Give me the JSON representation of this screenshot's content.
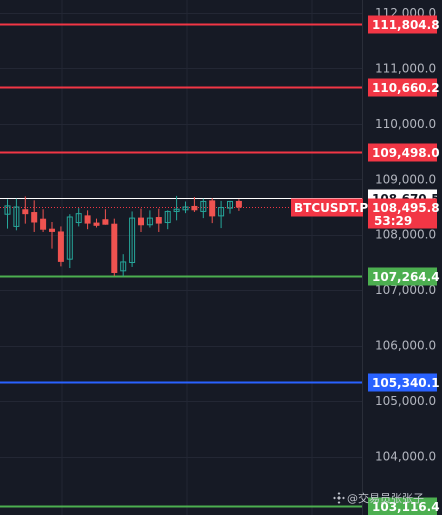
{
  "price_axis": {
    "min": 102950,
    "max": 112230,
    "tick_labels": [
      "112,000.0",
      "111,000.0",
      "110,000.0",
      "109,000.0",
      "108,000.0",
      "107,000.0",
      "106,000.0",
      "105,000.0",
      "104,000.0"
    ],
    "tick_values": [
      112000,
      111000,
      110000,
      109000,
      108000,
      107000,
      106000,
      105000,
      104000
    ]
  },
  "horizontal_lines": [
    {
      "value": 111804.8,
      "label": "111,804.8",
      "color": "#f23645"
    },
    {
      "value": 110660.2,
      "label": "110,660.2",
      "color": "#f23645"
    },
    {
      "value": 109498.0,
      "label": "109,498.0",
      "color": "#f23645"
    },
    {
      "value": 107264.4,
      "label": "107,264.4",
      "color": "#4caf50"
    },
    {
      "value": 105340.1,
      "label": "105,340.1",
      "color": "#2962ff"
    },
    {
      "value": 103116.4,
      "label": "103,116.4",
      "color": "#4caf50"
    }
  ],
  "high_line": {
    "value": 108670.5,
    "label": "108,670.5"
  },
  "current_price": {
    "symbol": "BTCUSDT.P",
    "value": 108495.8,
    "label": "108,495.8",
    "countdown": "53:29",
    "color": "#f23645"
  },
  "candles": [
    {
      "o": 108370,
      "h": 108640,
      "l": 108110,
      "c": 108520
    },
    {
      "o": 108150,
      "h": 108650,
      "l": 108080,
      "c": 108500
    },
    {
      "o": 108450,
      "h": 108690,
      "l": 108200,
      "c": 108380
    },
    {
      "o": 108400,
      "h": 108620,
      "l": 108050,
      "c": 108230
    },
    {
      "o": 108280,
      "h": 108460,
      "l": 108050,
      "c": 108100
    },
    {
      "o": 108100,
      "h": 108230,
      "l": 107750,
      "c": 108060
    },
    {
      "o": 108050,
      "h": 108150,
      "l": 107430,
      "c": 107520
    },
    {
      "o": 107560,
      "h": 108370,
      "l": 107400,
      "c": 108320
    },
    {
      "o": 108220,
      "h": 108480,
      "l": 108150,
      "c": 108380
    },
    {
      "o": 108340,
      "h": 108440,
      "l": 108100,
      "c": 108210
    },
    {
      "o": 108210,
      "h": 108290,
      "l": 108130,
      "c": 108170
    },
    {
      "o": 108270,
      "h": 108460,
      "l": 108180,
      "c": 108190
    },
    {
      "o": 108190,
      "h": 108290,
      "l": 107260,
      "c": 107320
    },
    {
      "o": 107350,
      "h": 107650,
      "l": 107250,
      "c": 107510
    },
    {
      "o": 107500,
      "h": 108420,
      "l": 107420,
      "c": 108300
    },
    {
      "o": 108300,
      "h": 108470,
      "l": 108050,
      "c": 108180
    },
    {
      "o": 108180,
      "h": 108440,
      "l": 108130,
      "c": 108300
    },
    {
      "o": 108310,
      "h": 108470,
      "l": 108050,
      "c": 108210
    },
    {
      "o": 108220,
      "h": 108440,
      "l": 108100,
      "c": 108420
    },
    {
      "o": 108420,
      "h": 108700,
      "l": 108260,
      "c": 108460
    },
    {
      "o": 108450,
      "h": 108600,
      "l": 108390,
      "c": 108500
    },
    {
      "o": 108510,
      "h": 108680,
      "l": 108410,
      "c": 108450
    },
    {
      "o": 108420,
      "h": 108650,
      "l": 108300,
      "c": 108600
    },
    {
      "o": 108610,
      "h": 108660,
      "l": 108210,
      "c": 108340
    },
    {
      "o": 108340,
      "h": 108610,
      "l": 108120,
      "c": 108490
    },
    {
      "o": 108480,
      "h": 108610,
      "l": 108380,
      "c": 108600
    },
    {
      "o": 108600,
      "h": 108640,
      "l": 108430,
      "c": 108500
    }
  ],
  "colors": {
    "background": "#161a25",
    "grid": "#232734",
    "up": "#26a69a",
    "down": "#ef5350"
  },
  "watermark": {
    "text": "@交易员张张子"
  }
}
